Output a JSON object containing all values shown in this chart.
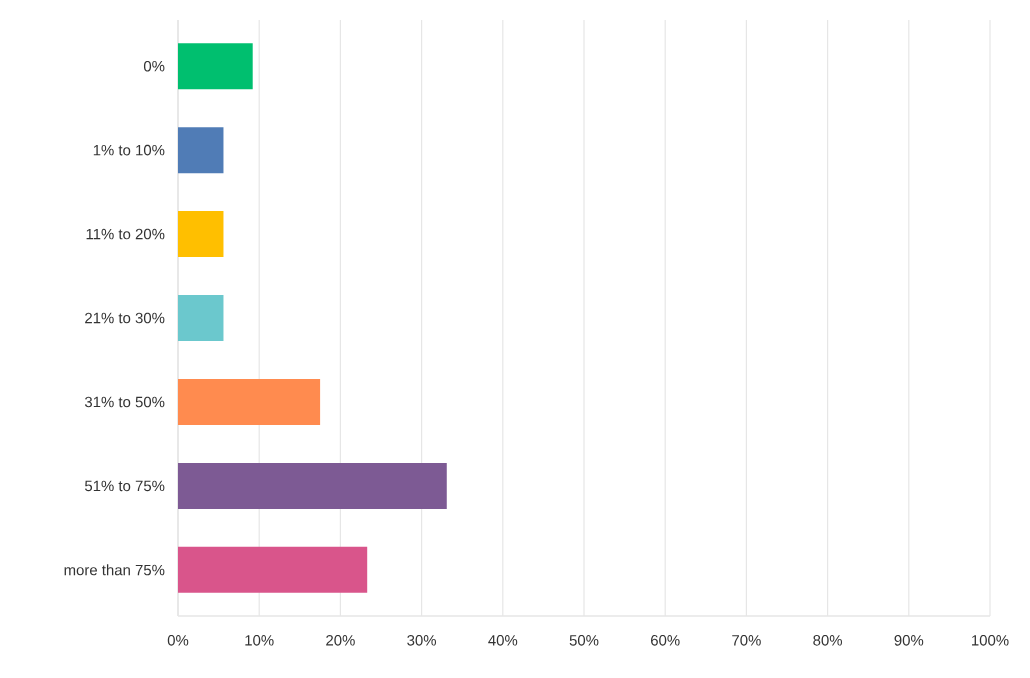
{
  "chart_data": {
    "type": "bar",
    "orientation": "horizontal",
    "categories": [
      "0%",
      "1% to 10%",
      "11% to 20%",
      "21% to 30%",
      "31% to 50%",
      "51% to 75%",
      "more than 75%"
    ],
    "values": [
      9.2,
      5.6,
      5.6,
      5.6,
      17.5,
      33.1,
      23.3
    ],
    "colors": [
      "#00bf6f",
      "#507cb6",
      "#ffbf00",
      "#6bc8cd",
      "#ff8b4f",
      "#7d5a94",
      "#d9558b"
    ],
    "xlim": [
      0,
      100
    ],
    "xticks": [
      {
        "value": 0,
        "label": "0%"
      },
      {
        "value": 10,
        "label": "10%"
      },
      {
        "value": 20,
        "label": "20%"
      },
      {
        "value": 30,
        "label": "30%"
      },
      {
        "value": 40,
        "label": "40%"
      },
      {
        "value": 50,
        "label": "50%"
      },
      {
        "value": 60,
        "label": "60%"
      },
      {
        "value": 70,
        "label": "70%"
      },
      {
        "value": 80,
        "label": "80%"
      },
      {
        "value": 90,
        "label": "90%"
      },
      {
        "value": 100,
        "label": "100%"
      }
    ],
    "grid": "x"
  }
}
